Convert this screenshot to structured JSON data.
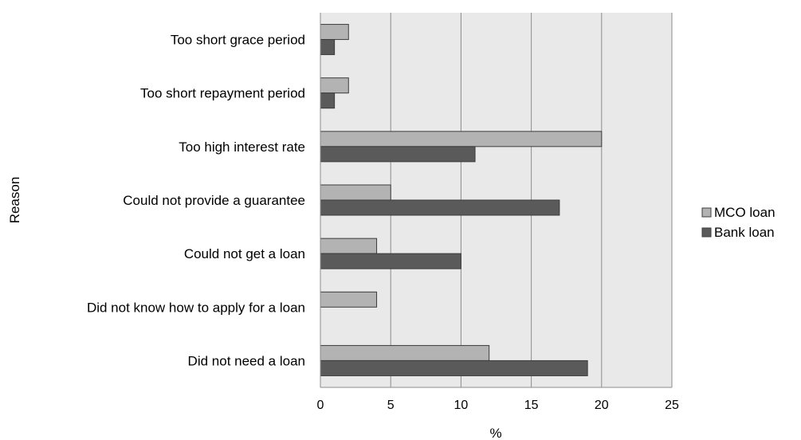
{
  "chart_data": {
    "type": "bar",
    "orientation": "horizontal",
    "categories": [
      "Too short grace period",
      "Too short repayment period",
      "Too high interest rate",
      "Could not provide a guarantee",
      "Could not get a loan",
      "Did not know how to apply for a loan",
      "Did not need a loan"
    ],
    "series": [
      {
        "name": "MCO loan",
        "values": [
          2,
          2,
          20,
          5,
          4,
          4,
          12
        ],
        "color": "#b3b3b3"
      },
      {
        "name": "Bank loan",
        "values": [
          1,
          1,
          11,
          17,
          10,
          0,
          19
        ],
        "color": "#5a5a5a"
      }
    ],
    "xlabel": "%",
    "ylabel": "Reason",
    "xlim": [
      0,
      25
    ],
    "xticks": [
      "0",
      "5",
      "10",
      "15",
      "20",
      "25"
    ],
    "grid": true,
    "legend_position": "right"
  }
}
